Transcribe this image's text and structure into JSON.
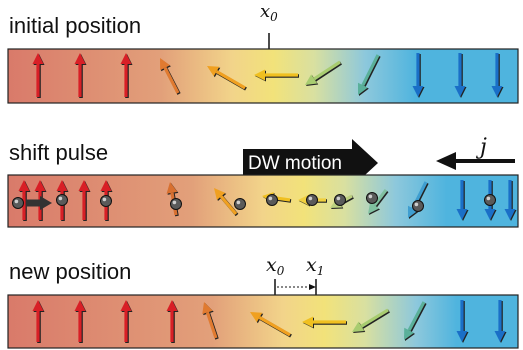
{
  "panels": {
    "initial": {
      "label": "initial position",
      "marker": "x",
      "marker_sub": "0"
    },
    "shift": {
      "label": "shift pulse",
      "motion_label": "DW motion",
      "current_label": "j"
    },
    "new": {
      "label": "new position",
      "marker_a": "x",
      "marker_a_sub": "0",
      "marker_b": "x",
      "marker_b_sub": "1"
    }
  },
  "colors": {
    "red_domain": "#d97a6a",
    "yellow_wall": "#f2e27a",
    "blue_domain": "#4fb4de",
    "red_arrow": "#d81f26",
    "blue_arrow": "#1a6fc7",
    "electron": "#555555"
  }
}
